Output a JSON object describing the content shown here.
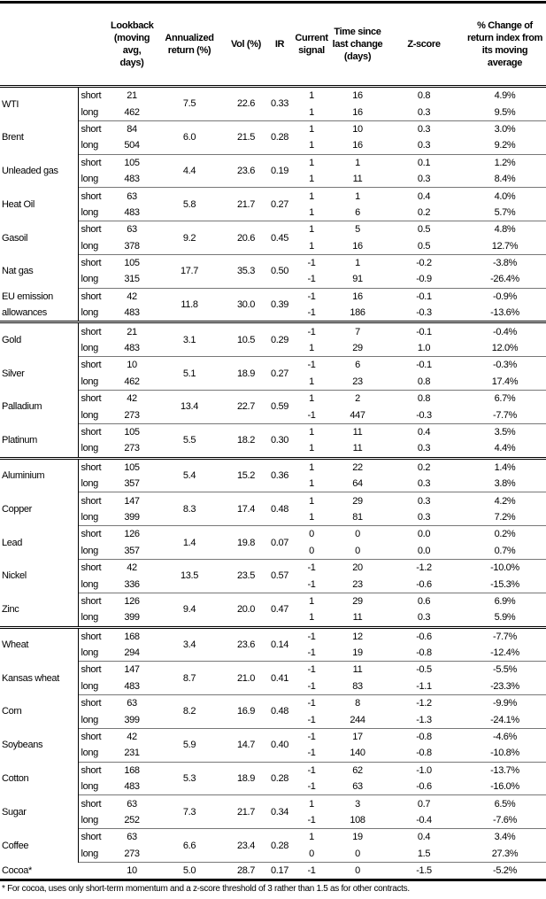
{
  "headers": [
    "",
    "",
    "Lookback (moving avg, days)",
    "Annualized return (%)",
    "Vol (%)",
    "IR",
    "Current signal",
    "Time since last change (days)",
    "Z-score",
    "% Change of return index from its moving average"
  ],
  "groups": [
    [
      {
        "name": "WTI",
        "ann": "7.5",
        "vol": "22.6",
        "ir": "0.33",
        "rows": [
          {
            "term": "short",
            "lookback": "21",
            "signal": "1",
            "time": "16",
            "z": "0.8",
            "pct": "4.9%"
          },
          {
            "term": "long",
            "lookback": "462",
            "signal": "1",
            "time": "16",
            "z": "0.3",
            "pct": "9.5%"
          }
        ]
      },
      {
        "name": "Brent",
        "ann": "6.0",
        "vol": "21.5",
        "ir": "0.28",
        "rows": [
          {
            "term": "short",
            "lookback": "84",
            "signal": "1",
            "time": "10",
            "z": "0.3",
            "pct": "3.0%"
          },
          {
            "term": "long",
            "lookback": "504",
            "signal": "1",
            "time": "16",
            "z": "0.3",
            "pct": "9.2%"
          }
        ]
      },
      {
        "name": "Unleaded gas",
        "ann": "4.4",
        "vol": "23.6",
        "ir": "0.19",
        "rows": [
          {
            "term": "short",
            "lookback": "105",
            "signal": "1",
            "time": "1",
            "z": "0.1",
            "pct": "1.2%"
          },
          {
            "term": "long",
            "lookback": "483",
            "signal": "1",
            "time": "11",
            "z": "0.3",
            "pct": "8.4%"
          }
        ]
      },
      {
        "name": "Heat Oil",
        "ann": "5.8",
        "vol": "21.7",
        "ir": "0.27",
        "rows": [
          {
            "term": "short",
            "lookback": "63",
            "signal": "1",
            "time": "1",
            "z": "0.4",
            "pct": "4.0%"
          },
          {
            "term": "long",
            "lookback": "483",
            "signal": "1",
            "time": "6",
            "z": "0.2",
            "pct": "5.7%"
          }
        ]
      },
      {
        "name": "Gasoil",
        "ann": "9.2",
        "vol": "20.6",
        "ir": "0.45",
        "rows": [
          {
            "term": "short",
            "lookback": "63",
            "signal": "1",
            "time": "5",
            "z": "0.5",
            "pct": "4.8%"
          },
          {
            "term": "long",
            "lookback": "378",
            "signal": "1",
            "time": "16",
            "z": "0.5",
            "pct": "12.7%"
          }
        ]
      },
      {
        "name": "Nat gas",
        "ann": "17.7",
        "vol": "35.3",
        "ir": "0.50",
        "rows": [
          {
            "term": "short",
            "lookback": "105",
            "signal": "-1",
            "time": "1",
            "z": "-0.2",
            "pct": "-3.8%"
          },
          {
            "term": "long",
            "lookback": "315",
            "signal": "-1",
            "time": "91",
            "z": "-0.9",
            "pct": "-26.4%"
          }
        ]
      },
      {
        "name": "EU emission allowances",
        "ann": "11.8",
        "vol": "30.0",
        "ir": "0.39",
        "rows": [
          {
            "term": "short",
            "lookback": "42",
            "signal": "-1",
            "time": "16",
            "z": "-0.1",
            "pct": "-0.9%"
          },
          {
            "term": "long",
            "lookback": "483",
            "signal": "-1",
            "time": "186",
            "z": "-0.3",
            "pct": "-13.6%"
          }
        ]
      }
    ],
    [
      {
        "name": "Gold",
        "ann": "3.1",
        "vol": "10.5",
        "ir": "0.29",
        "rows": [
          {
            "term": "short",
            "lookback": "21",
            "signal": "-1",
            "time": "7",
            "z": "-0.1",
            "pct": "-0.4%"
          },
          {
            "term": "long",
            "lookback": "483",
            "signal": "1",
            "time": "29",
            "z": "1.0",
            "pct": "12.0%"
          }
        ]
      },
      {
        "name": "Silver",
        "ann": "5.1",
        "vol": "18.9",
        "ir": "0.27",
        "rows": [
          {
            "term": "short",
            "lookback": "10",
            "signal": "-1",
            "time": "6",
            "z": "-0.1",
            "pct": "-0.3%"
          },
          {
            "term": "long",
            "lookback": "462",
            "signal": "1",
            "time": "23",
            "z": "0.8",
            "pct": "17.4%"
          }
        ]
      },
      {
        "name": "Palladium",
        "ann": "13.4",
        "vol": "22.7",
        "ir": "0.59",
        "rows": [
          {
            "term": "short",
            "lookback": "42",
            "signal": "1",
            "time": "2",
            "z": "0.8",
            "pct": "6.7%"
          },
          {
            "term": "long",
            "lookback": "273",
            "signal": "-1",
            "time": "447",
            "z": "-0.3",
            "pct": "-7.7%"
          }
        ]
      },
      {
        "name": "Platinum",
        "ann": "5.5",
        "vol": "18.2",
        "ir": "0.30",
        "rows": [
          {
            "term": "short",
            "lookback": "105",
            "signal": "1",
            "time": "11",
            "z": "0.4",
            "pct": "3.5%"
          },
          {
            "term": "long",
            "lookback": "273",
            "signal": "1",
            "time": "11",
            "z": "0.3",
            "pct": "4.4%"
          }
        ]
      }
    ],
    [
      {
        "name": "Aluminium",
        "ann": "5.4",
        "vol": "15.2",
        "ir": "0.36",
        "rows": [
          {
            "term": "short",
            "lookback": "105",
            "signal": "1",
            "time": "22",
            "z": "0.2",
            "pct": "1.4%"
          },
          {
            "term": "long",
            "lookback": "357",
            "signal": "1",
            "time": "64",
            "z": "0.3",
            "pct": "3.8%"
          }
        ]
      },
      {
        "name": "Copper",
        "ann": "8.3",
        "vol": "17.4",
        "ir": "0.48",
        "rows": [
          {
            "term": "short",
            "lookback": "147",
            "signal": "1",
            "time": "29",
            "z": "0.3",
            "pct": "4.2%"
          },
          {
            "term": "long",
            "lookback": "399",
            "signal": "1",
            "time": "81",
            "z": "0.3",
            "pct": "7.2%"
          }
        ]
      },
      {
        "name": "Lead",
        "ann": "1.4",
        "vol": "19.8",
        "ir": "0.07",
        "rows": [
          {
            "term": "short",
            "lookback": "126",
            "signal": "0",
            "time": "0",
            "z": "0.0",
            "pct": "0.2%"
          },
          {
            "term": "long",
            "lookback": "357",
            "signal": "0",
            "time": "0",
            "z": "0.0",
            "pct": "0.7%"
          }
        ]
      },
      {
        "name": "Nickel",
        "ann": "13.5",
        "vol": "23.5",
        "ir": "0.57",
        "rows": [
          {
            "term": "short",
            "lookback": "42",
            "signal": "-1",
            "time": "20",
            "z": "-1.2",
            "pct": "-10.0%"
          },
          {
            "term": "long",
            "lookback": "336",
            "signal": "-1",
            "time": "23",
            "z": "-0.6",
            "pct": "-15.3%"
          }
        ]
      },
      {
        "name": "Zinc",
        "ann": "9.4",
        "vol": "20.0",
        "ir": "0.47",
        "rows": [
          {
            "term": "short",
            "lookback": "126",
            "signal": "1",
            "time": "29",
            "z": "0.6",
            "pct": "6.9%"
          },
          {
            "term": "long",
            "lookback": "399",
            "signal": "1",
            "time": "11",
            "z": "0.3",
            "pct": "5.9%"
          }
        ]
      }
    ],
    [
      {
        "name": "Wheat",
        "ann": "3.4",
        "vol": "23.6",
        "ir": "0.14",
        "rows": [
          {
            "term": "short",
            "lookback": "168",
            "signal": "-1",
            "time": "12",
            "z": "-0.6",
            "pct": "-7.7%"
          },
          {
            "term": "long",
            "lookback": "294",
            "signal": "-1",
            "time": "19",
            "z": "-0.8",
            "pct": "-12.4%"
          }
        ]
      },
      {
        "name": "Kansas wheat",
        "ann": "8.7",
        "vol": "21.0",
        "ir": "0.41",
        "rows": [
          {
            "term": "short",
            "lookback": "147",
            "signal": "-1",
            "time": "11",
            "z": "-0.5",
            "pct": "-5.5%"
          },
          {
            "term": "long",
            "lookback": "483",
            "signal": "-1",
            "time": "83",
            "z": "-1.1",
            "pct": "-23.3%"
          }
        ]
      },
      {
        "name": "Corn",
        "ann": "8.2",
        "vol": "16.9",
        "ir": "0.48",
        "rows": [
          {
            "term": "short",
            "lookback": "63",
            "signal": "-1",
            "time": "8",
            "z": "-1.2",
            "pct": "-9.9%"
          },
          {
            "term": "long",
            "lookback": "399",
            "signal": "-1",
            "time": "244",
            "z": "-1.3",
            "pct": "-24.1%"
          }
        ]
      },
      {
        "name": "Soybeans",
        "ann": "5.9",
        "vol": "14.7",
        "ir": "0.40",
        "rows": [
          {
            "term": "short",
            "lookback": "42",
            "signal": "-1",
            "time": "17",
            "z": "-0.8",
            "pct": "-4.6%"
          },
          {
            "term": "long",
            "lookback": "231",
            "signal": "-1",
            "time": "140",
            "z": "-0.8",
            "pct": "-10.8%"
          }
        ]
      },
      {
        "name": "Cotton",
        "ann": "5.3",
        "vol": "18.9",
        "ir": "0.28",
        "rows": [
          {
            "term": "short",
            "lookback": "168",
            "signal": "-1",
            "time": "62",
            "z": "-1.0",
            "pct": "-13.7%"
          },
          {
            "term": "long",
            "lookback": "483",
            "signal": "-1",
            "time": "63",
            "z": "-0.6",
            "pct": "-16.0%"
          }
        ]
      },
      {
        "name": "Sugar",
        "ann": "7.3",
        "vol": "21.7",
        "ir": "0.34",
        "rows": [
          {
            "term": "short",
            "lookback": "63",
            "signal": "1",
            "time": "3",
            "z": "0.7",
            "pct": "6.5%"
          },
          {
            "term": "long",
            "lookback": "252",
            "signal": "-1",
            "time": "108",
            "z": "-0.4",
            "pct": "-7.6%"
          }
        ]
      },
      {
        "name": "Coffee",
        "ann": "6.6",
        "vol": "23.4",
        "ir": "0.28",
        "rows": [
          {
            "term": "short",
            "lookback": "63",
            "signal": "1",
            "time": "19",
            "z": "0.4",
            "pct": "3.4%"
          },
          {
            "term": "long",
            "lookback": "273",
            "signal": "0",
            "time": "0",
            "z": "1.5",
            "pct": "27.3%"
          }
        ]
      },
      {
        "name": "Cocoa*",
        "ann": "5.0",
        "vol": "28.7",
        "ir": "0.17",
        "rows": [
          {
            "term": "",
            "lookback": "10",
            "signal": "-1",
            "time": "0",
            "z": "-1.5",
            "pct": "-5.2%"
          }
        ]
      }
    ]
  ],
  "footnote": "* For cocoa, uses only short-term momentum and a z-score threshold of 3 rather than 1.5 as for other contracts."
}
